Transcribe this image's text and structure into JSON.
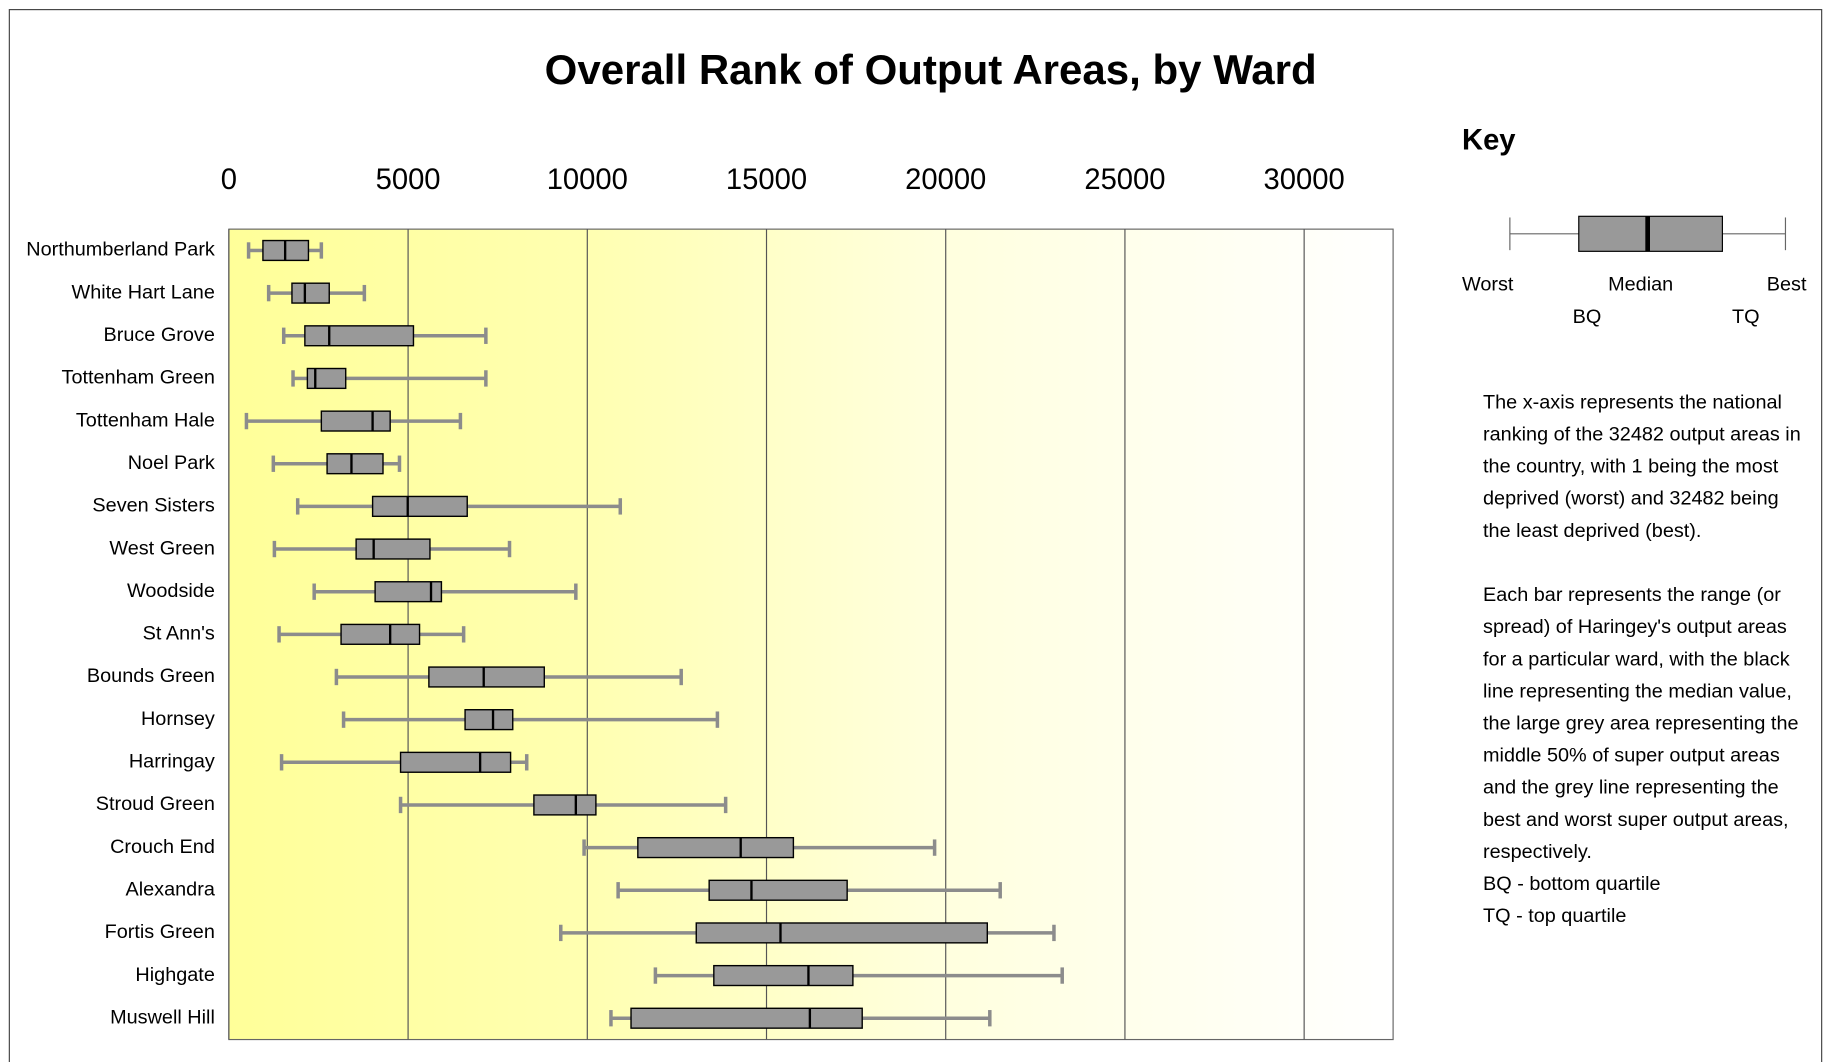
{
  "chart_data": {
    "type": "boxplot",
    "title": "Overall Rank of Output Areas, by Ward",
    "categories": [
      "Northumberland Park",
      "White Hart Lane",
      "Bruce Grove",
      "Tottenham Green",
      "Tottenham Hale",
      "Noel Park",
      "Seven Sisters",
      "West Green",
      "Woodside",
      "St Ann's",
      "Bounds Green",
      "Hornsey",
      "Harringay",
      "Stroud Green",
      "Crouch End",
      "Alexandra",
      "Fortis Green",
      "Highgate",
      "Muswell Hill"
    ],
    "min": [
      550,
      1110,
      1530,
      1790,
      490,
      1240,
      1920,
      1270,
      2380,
      1400,
      3000,
      3200,
      1470,
      4790,
      9910,
      10860,
      9260,
      11900,
      10660
    ],
    "q1": [
      950,
      1760,
      2120,
      2190,
      2580,
      2740,
      4010,
      3550,
      4080,
      3130,
      5580,
      6590,
      4790,
      8510,
      11410,
      13400,
      13040,
      13530,
      11220
    ],
    "median": [
      1570,
      2120,
      2800,
      2410,
      4010,
      3420,
      4990,
      4040,
      5640,
      4500,
      7110,
      7370,
      7010,
      9680,
      14280,
      14580,
      15390,
      16170,
      16210
    ],
    "q3": [
      2220,
      2800,
      5150,
      3260,
      4500,
      4300,
      6650,
      5610,
      5930,
      5320,
      8800,
      7920,
      7860,
      10240,
      15750,
      17250,
      21160,
      17410,
      17670
    ],
    "max": [
      2580,
      3780,
      7170,
      7170,
      6460,
      4760,
      10920,
      7830,
      9680,
      6550,
      12620,
      13630,
      8310,
      13860,
      19690,
      21520,
      23020,
      23250,
      21230
    ],
    "box_color": "#999999",
    "whisker_color": "#8c8c8c",
    "xlim": [
      0,
      32482
    ],
    "xticks": [
      0,
      5000,
      10000,
      15000,
      20000,
      25000,
      30000
    ],
    "grid": true,
    "key": {
      "title": "Key",
      "worst": "Worst",
      "median": "Median",
      "best": "Best",
      "bq": "BQ",
      "tq": "TQ",
      "description": [
        "The x-axis represents the national",
        "ranking of the 32482 output areas in",
        "the country, with 1 being the most",
        "deprived (worst) and 32482 being",
        "the least deprived (best).",
        "",
        "Each bar represents the range (or",
        "spread) of Haringey's output areas",
        "for a particular ward, with the black",
        "line representing the median value,",
        "the large grey area representing the",
        "middle 50% of super output areas",
        "and the grey line representing the",
        "best and worst super output areas,",
        "respectively.",
        "BQ - bottom quartile",
        "TQ - top quartile"
      ]
    }
  }
}
